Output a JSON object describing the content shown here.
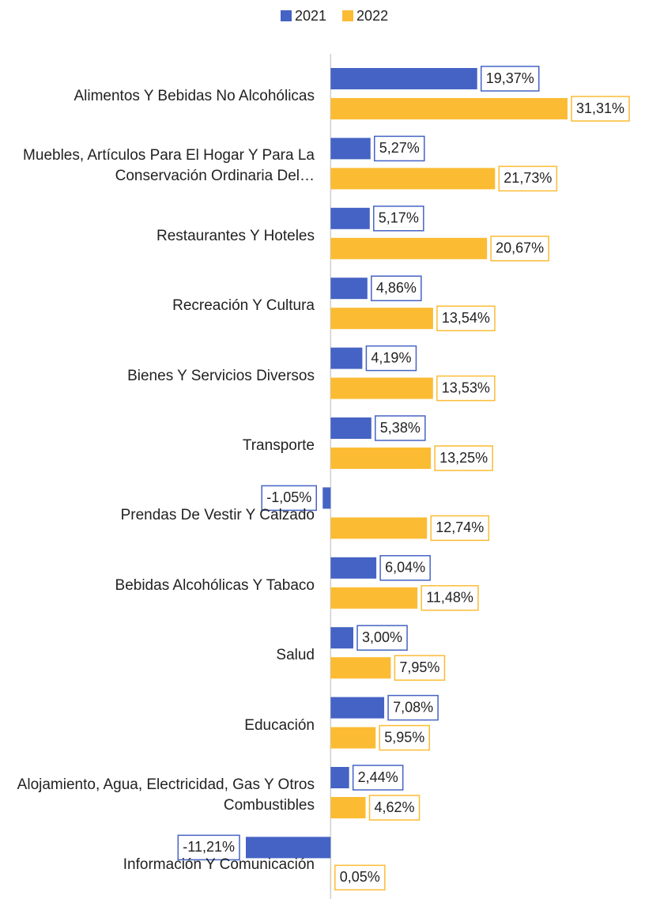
{
  "chart_data": {
    "type": "hbar",
    "categories": [
      "Alimentos Y Bebidas No Alcohólicas",
      "Muebles, Artículos Para El Hogar Y Para La Conservación Ordinaria Del…",
      "Restaurantes Y Hoteles",
      "Recreación Y Cultura",
      "Bienes Y Servicios Diversos",
      "Transporte",
      "Prendas De Vestir Y Calzado",
      "Bebidas Alcohólicas Y Tabaco",
      "Salud",
      "Educación",
      "Alojamiento, Agua, Electricidad, Gas Y Otros Combustibles",
      "Información Y Comunicación"
    ],
    "series": [
      {
        "name": "2021",
        "color": "#4563c4",
        "values": [
          19.37,
          5.27,
          5.17,
          4.86,
          4.19,
          5.38,
          -1.05,
          6.04,
          3.0,
          7.08,
          2.44,
          -11.21
        ],
        "value_labels": [
          "19,37%",
          "5,27%",
          "5,17%",
          "4,86%",
          "4,19%",
          "5,38%",
          "-1,05%",
          "6,04%",
          "3,00%",
          "7,08%",
          "2,44%",
          "-11,21%"
        ]
      },
      {
        "name": "2022",
        "color": "#fbbc34",
        "values": [
          31.31,
          21.73,
          20.67,
          13.54,
          13.53,
          13.25,
          12.74,
          11.48,
          7.95,
          5.95,
          4.62,
          0.05
        ],
        "value_labels": [
          "31,31%",
          "21,73%",
          "20,67%",
          "13,54%",
          "13,53%",
          "13,25%",
          "12,74%",
          "11,48%",
          "7,95%",
          "5,95%",
          "4,62%",
          "0,05%"
        ]
      }
    ],
    "legend": "top"
  }
}
